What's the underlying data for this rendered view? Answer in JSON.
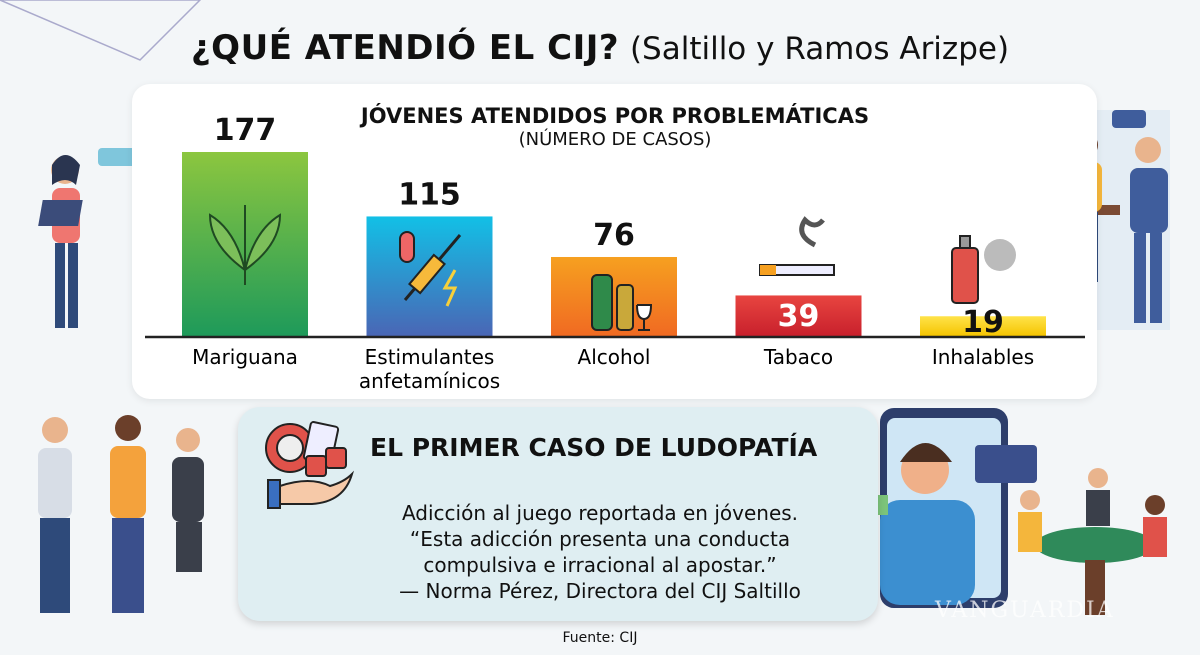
{
  "header": {
    "title_bold": "¿QUÉ ATENDIÓ EL CIJ?",
    "title_light": "(Saltillo y Ramos Arizpe)"
  },
  "chart_data": {
    "type": "bar",
    "title": "JÓVENES ATENDIDOS POR PROBLEMÁTICAS",
    "subtitle": "(NÚMERO DE CASOS)",
    "categories": [
      "Mariguana",
      "Estimulantes anfetamínicos",
      "Alcohol",
      "Tabaco",
      "Inhalables"
    ],
    "category_lines": [
      [
        "Mariguana"
      ],
      [
        "Estimulantes",
        "anfetamínicos"
      ],
      [
        "Alcohol"
      ],
      [
        "Tabaco"
      ],
      [
        "Inhalables"
      ]
    ],
    "values": [
      177,
      115,
      76,
      39,
      19
    ],
    "value_labels": [
      "177",
      "115",
      "76",
      "39",
      "19"
    ],
    "colors": [
      [
        "#8cc63f",
        "#1e9a5a"
      ],
      [
        "#12c0e6",
        "#4a66b5"
      ],
      [
        "#f6a020",
        "#f06a22"
      ],
      [
        "#e84540",
        "#c8202c"
      ],
      [
        "#ffe34a",
        "#f5c400"
      ]
    ],
    "icons": [
      "cannabis-leaf-icon",
      "pills-syringe-icon",
      "bottles-wine-icon",
      "cigarette-icon",
      "spray-can-icon"
    ],
    "ylim": [
      0,
      177
    ],
    "grid": false,
    "legend": "none"
  },
  "ludopatia": {
    "title": "EL PRIMER CASO DE LUDOPATÍA",
    "lines": [
      "Adicción al juego reportada en jóvenes.",
      "“Esta adicción presenta una conducta",
      "compulsiva e irracional al apostar.”",
      "— Norma Pérez, Directora del CIJ Saltillo"
    ],
    "icon": "gambling-chips-dice-hand-icon"
  },
  "footer": {
    "source": "Fuente: CIJ"
  },
  "watermark": "VANGUARDIA"
}
